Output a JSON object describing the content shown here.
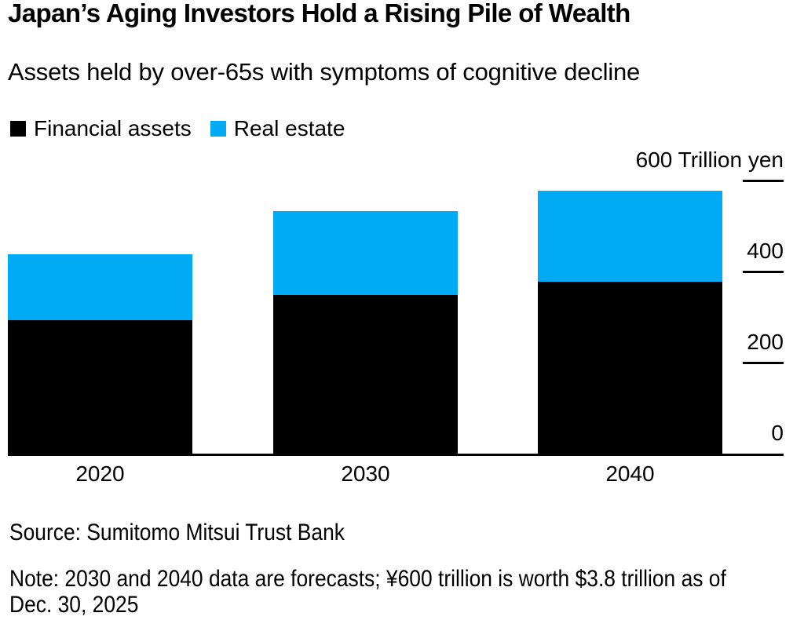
{
  "title": "Japan’s Aging Investors Hold a Rising Pile of Wealth",
  "subtitle": "Assets held by over-65s with symptoms of cognitive decline",
  "legend": [
    {
      "label": "Financial assets",
      "color": "#000000"
    },
    {
      "label": "Real estate",
      "color": "#00aaf5"
    }
  ],
  "source": "Source: Sumitomo Mitsui Trust Bank",
  "note_line_1": "Note: 2030 and 2040 data are forecasts; ¥600 trillion is worth $3.8 trillion as of",
  "note_line_2": "Dec. 30, 2025",
  "chart_data": {
    "type": "bar",
    "stacked": true,
    "title": "Japan’s Aging Investors Hold a Rising Pile of Wealth",
    "subtitle": "Assets held by over-65s with symptoms of cognitive decline",
    "categories": [
      "2020",
      "2030",
      "2040"
    ],
    "series": [
      {
        "name": "Financial assets",
        "color": "#000000",
        "values": [
          295,
          350,
          380
        ]
      },
      {
        "name": "Real estate",
        "color": "#00aaf5",
        "values": [
          145,
          185,
          200
        ]
      }
    ],
    "unit": "Trillion yen",
    "ylim": [
      0,
      600
    ],
    "yticks": [
      {
        "value": 600,
        "label": "600 Trillion yen"
      },
      {
        "value": 400,
        "label": "400"
      },
      {
        "value": 200,
        "label": "200"
      },
      {
        "value": 0,
        "label": "0"
      }
    ],
    "axis_side": "right",
    "grid": false,
    "legend_position": "top-left"
  }
}
